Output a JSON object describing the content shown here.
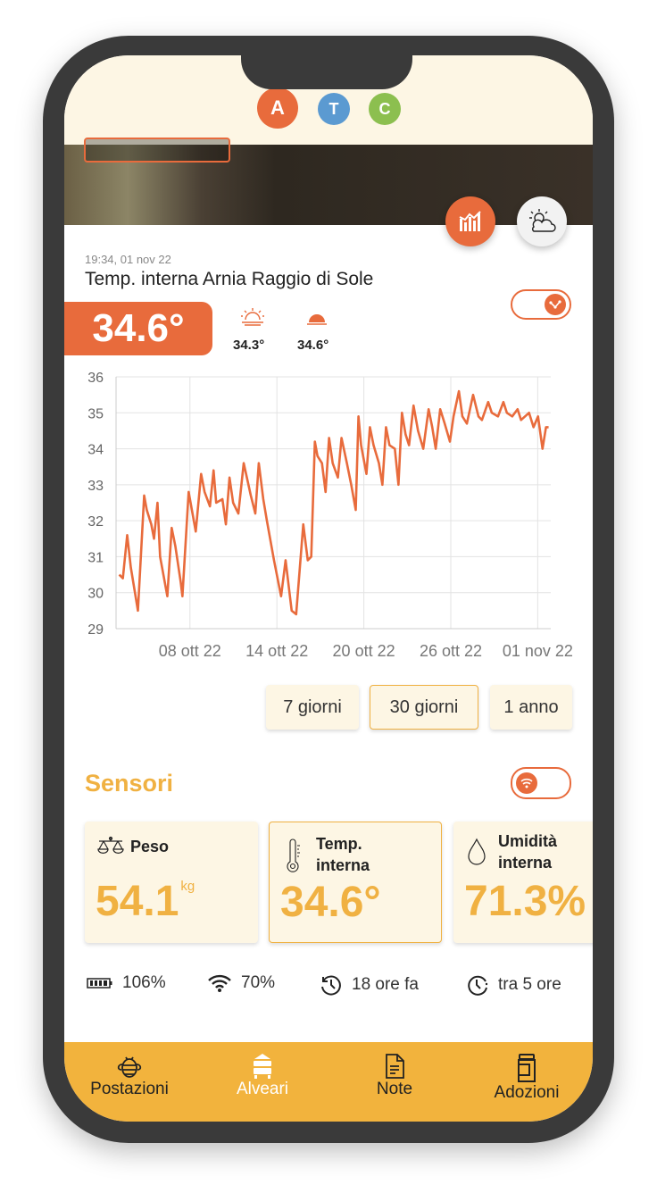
{
  "tabs": [
    {
      "label": "A",
      "color": "#e86b3c"
    },
    {
      "label": "T",
      "color": "#5b9ad1"
    },
    {
      "label": "C",
      "color": "#8cbf4f"
    }
  ],
  "reading": {
    "timestamp": "19:34, 01 nov 22",
    "title": "Temp. interna Arnia Raggio di Sole",
    "current": "34.6°",
    "min": "34.3°",
    "max": "34.6°"
  },
  "range_buttons": [
    {
      "label": "7 giorni"
    },
    {
      "label": "30 giorni",
      "selected": true
    },
    {
      "label": "1 anno"
    }
  ],
  "sensors": {
    "title": "Sensori",
    "cards": [
      {
        "label": "Peso",
        "value": "54.1",
        "unit": "kg"
      },
      {
        "label_1": "Temp.",
        "label_2": "interna",
        "value": "34.6°"
      },
      {
        "label_1": "Umidità",
        "label_2": "interna",
        "value": "71.3%"
      }
    ]
  },
  "status": {
    "battery": "106%",
    "signal": "70%",
    "last": "18 ore fa",
    "next": "tra 5 ore"
  },
  "nav": [
    {
      "label": "Postazioni"
    },
    {
      "label": "Alveari",
      "active": true
    },
    {
      "label": "Note"
    },
    {
      "label": "Adozioni"
    }
  ],
  "chart_data": {
    "type": "line",
    "title": "Temp. interna Arnia Raggio di Sole",
    "xlabel": "",
    "ylabel": "",
    "ylim": [
      29,
      36
    ],
    "yticks": [
      "29",
      "30",
      "31",
      "32",
      "33",
      "34",
      "35",
      "36"
    ],
    "xticks": [
      {
        "day": 5,
        "label": "08 ott 22"
      },
      {
        "day": 11,
        "label": "14 ott 22"
      },
      {
        "day": 17,
        "label": "20 ott 22"
      },
      {
        "day": 23,
        "label": "26 ott 22"
      },
      {
        "day": 29,
        "label": "01 nov 22"
      }
    ],
    "x_unit": "days since 03 ott 22",
    "xlim": [
      -0.1,
      29.9
    ],
    "color": "#e86b3c",
    "points": [
      [
        0.12,
        30.5
      ],
      [
        0.37,
        30.4
      ],
      [
        0.67,
        31.6
      ],
      [
        0.92,
        30.7
      ],
      [
        1.41,
        29.5
      ],
      [
        1.84,
        32.7
      ],
      [
        2.02,
        32.3
      ],
      [
        2.33,
        31.9
      ],
      [
        2.52,
        31.5
      ],
      [
        2.76,
        32.5
      ],
      [
        2.94,
        31.0
      ],
      [
        3.44,
        29.9
      ],
      [
        3.74,
        31.8
      ],
      [
        3.99,
        31.3
      ],
      [
        4.36,
        30.3
      ],
      [
        4.48,
        29.9
      ],
      [
        4.91,
        32.8
      ],
      [
        5.4,
        31.7
      ],
      [
        5.77,
        33.3
      ],
      [
        6.01,
        32.8
      ],
      [
        6.38,
        32.4
      ],
      [
        6.63,
        33.4
      ],
      [
        6.81,
        32.5
      ],
      [
        7.24,
        32.6
      ],
      [
        7.48,
        31.9
      ],
      [
        7.73,
        33.2
      ],
      [
        7.98,
        32.5
      ],
      [
        8.34,
        32.2
      ],
      [
        8.71,
        33.6
      ],
      [
        9.2,
        32.7
      ],
      [
        9.51,
        32.2
      ],
      [
        9.75,
        33.6
      ],
      [
        10.06,
        32.6
      ],
      [
        10.31,
        32.0
      ],
      [
        10.8,
        30.9
      ],
      [
        11.29,
        29.9
      ],
      [
        11.6,
        30.9
      ],
      [
        12.02,
        29.5
      ],
      [
        12.33,
        29.4
      ],
      [
        12.82,
        31.9
      ],
      [
        13.13,
        30.9
      ],
      [
        13.37,
        31.0
      ],
      [
        13.62,
        34.2
      ],
      [
        13.8,
        33.8
      ],
      [
        14.11,
        33.6
      ],
      [
        14.36,
        32.8
      ],
      [
        14.6,
        34.3
      ],
      [
        14.85,
        33.6
      ],
      [
        15.21,
        33.2
      ],
      [
        15.46,
        34.3
      ],
      [
        15.83,
        33.6
      ],
      [
        16.13,
        33.0
      ],
      [
        16.44,
        32.3
      ],
      [
        16.63,
        34.9
      ],
      [
        16.81,
        34.1
      ],
      [
        17.18,
        33.3
      ],
      [
        17.42,
        34.6
      ],
      [
        17.67,
        34.1
      ],
      [
        18.04,
        33.6
      ],
      [
        18.28,
        33.0
      ],
      [
        18.53,
        34.6
      ],
      [
        18.77,
        34.1
      ],
      [
        19.14,
        34.0
      ],
      [
        19.39,
        33.0
      ],
      [
        19.63,
        35.0
      ],
      [
        19.88,
        34.4
      ],
      [
        20.12,
        34.1
      ],
      [
        20.43,
        35.2
      ],
      [
        20.74,
        34.5
      ],
      [
        21.1,
        34.0
      ],
      [
        21.47,
        35.1
      ],
      [
        21.72,
        34.6
      ],
      [
        21.96,
        34.0
      ],
      [
        22.27,
        35.1
      ],
      [
        22.58,
        34.7
      ],
      [
        22.94,
        34.2
      ],
      [
        23.19,
        34.9
      ],
      [
        23.56,
        35.6
      ],
      [
        23.8,
        34.9
      ],
      [
        24.11,
        34.7
      ],
      [
        24.54,
        35.5
      ],
      [
        24.91,
        34.9
      ],
      [
        25.15,
        34.8
      ],
      [
        25.58,
        35.3
      ],
      [
        25.83,
        35.0
      ],
      [
        26.26,
        34.9
      ],
      [
        26.63,
        35.3
      ],
      [
        26.87,
        35.0
      ],
      [
        27.24,
        34.9
      ],
      [
        27.61,
        35.1
      ],
      [
        27.85,
        34.8
      ],
      [
        28.4,
        35.0
      ],
      [
        28.71,
        34.6
      ],
      [
        29.02,
        34.9
      ],
      [
        29.33,
        34.0
      ],
      [
        29.57,
        34.6
      ],
      [
        29.75,
        34.6
      ]
    ]
  }
}
